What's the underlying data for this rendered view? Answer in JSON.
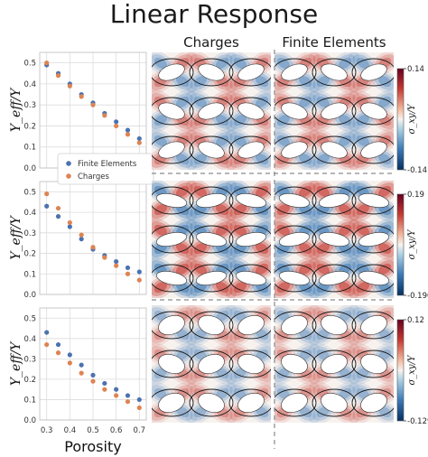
{
  "figure": {
    "title": "Linear Response",
    "column_titles": [
      "Charges",
      "Finite Elements"
    ],
    "ylabel": "Y_eff/Y",
    "xlabel": "Porosity",
    "legend": [
      "Finite Elements",
      "Charges"
    ],
    "colorbar_label": "σ_xy/Y"
  },
  "colors": {
    "finite_elements": "#4c72b0",
    "charges": "#dd8452",
    "cmap_neg": "#3a78b5",
    "cmap_pos": "#c43a32",
    "cmap_mid": "#f7f2ee"
  },
  "colorbars": [
    {
      "max": "0.14",
      "min": "-0.14"
    },
    {
      "max": "0.19",
      "min": "-0.190"
    },
    {
      "max": "0.12",
      "min": "-0.129"
    }
  ],
  "chart_data": [
    {
      "type": "scatter",
      "x": [
        0.3,
        0.35,
        0.4,
        0.45,
        0.5,
        0.55,
        0.6,
        0.65,
        0.7
      ],
      "series": [
        {
          "name": "Finite Elements",
          "values": [
            0.49,
            0.45,
            0.4,
            0.35,
            0.31,
            0.26,
            0.22,
            0.18,
            0.14
          ]
        },
        {
          "name": "Charges",
          "values": [
            0.5,
            0.44,
            0.39,
            0.34,
            0.3,
            0.25,
            0.2,
            0.16,
            0.12
          ]
        }
      ],
      "xlim": [
        0.27,
        0.73
      ],
      "ylim": [
        0.0,
        0.55
      ],
      "yticks": [
        "0.0",
        "0.1",
        "0.2",
        "0.3",
        "0.4",
        "0.5"
      ],
      "grid": true,
      "legend_placement": "bottom-right"
    },
    {
      "type": "scatter",
      "x": [
        0.3,
        0.35,
        0.4,
        0.45,
        0.5,
        0.55,
        0.6,
        0.65,
        0.7
      ],
      "series": [
        {
          "name": "Finite Elements",
          "values": [
            0.43,
            0.38,
            0.33,
            0.27,
            0.22,
            0.19,
            0.16,
            0.13,
            0.11
          ]
        },
        {
          "name": "Charges",
          "values": [
            0.49,
            0.42,
            0.35,
            0.29,
            0.23,
            0.18,
            0.14,
            0.1,
            0.07
          ]
        }
      ],
      "xlim": [
        0.27,
        0.73
      ],
      "ylim": [
        0.0,
        0.55
      ],
      "yticks": [
        "0.0",
        "0.1",
        "0.2",
        "0.3",
        "0.4",
        "0.5"
      ],
      "grid": true
    },
    {
      "type": "scatter",
      "x": [
        0.3,
        0.35,
        0.4,
        0.45,
        0.5,
        0.55,
        0.6,
        0.65,
        0.7
      ],
      "series": [
        {
          "name": "Finite Elements",
          "values": [
            0.43,
            0.37,
            0.32,
            0.27,
            0.22,
            0.18,
            0.15,
            0.12,
            0.1
          ]
        },
        {
          "name": "Charges",
          "values": [
            0.37,
            0.33,
            0.28,
            0.23,
            0.19,
            0.15,
            0.12,
            0.09,
            0.06
          ]
        }
      ],
      "xlim": [
        0.27,
        0.73
      ],
      "ylim": [
        0.0,
        0.55
      ],
      "yticks": [
        "0.0",
        "0.1",
        "0.2",
        "0.3",
        "0.4",
        "0.5"
      ],
      "xticks": [
        "0.3",
        "0.4",
        "0.5",
        "0.6",
        "0.7"
      ],
      "grid": true
    }
  ]
}
